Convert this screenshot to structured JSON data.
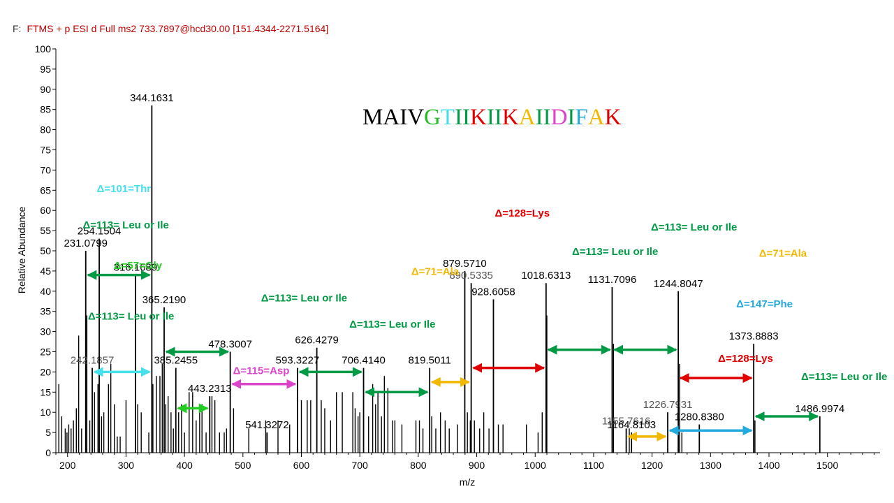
{
  "header": {
    "prefix": "F:",
    "scan_filter": "FTMS + p ESI d Full ms2 733.7897@hcd30.00 [151.4344-2271.5164]"
  },
  "sequence": [
    {
      "ch": "M",
      "color": "#000000"
    },
    {
      "ch": "A",
      "color": "#000000"
    },
    {
      "ch": "I",
      "color": "#000000"
    },
    {
      "ch": "V",
      "color": "#000000"
    },
    {
      "ch": "G",
      "color": "#22bb22"
    },
    {
      "ch": "T",
      "color": "#44e0ee"
    },
    {
      "ch": "I",
      "color": "#009a44"
    },
    {
      "ch": "I",
      "color": "#009a44"
    },
    {
      "ch": "K",
      "color": "#e00000"
    },
    {
      "ch": "I",
      "color": "#009a44"
    },
    {
      "ch": "I",
      "color": "#009a44"
    },
    {
      "ch": "K",
      "color": "#e00000"
    },
    {
      "ch": "A",
      "color": "#f2b800"
    },
    {
      "ch": "I",
      "color": "#009a44"
    },
    {
      "ch": "I",
      "color": "#009a44"
    },
    {
      "ch": "D",
      "color": "#dd44cc"
    },
    {
      "ch": "I",
      "color": "#009a44"
    },
    {
      "ch": "F",
      "color": "#22a9dd"
    },
    {
      "ch": "A",
      "color": "#f2b800"
    },
    {
      "ch": "K",
      "color": "#e00000"
    }
  ],
  "chart_data": {
    "type": "bar",
    "xlabel": "m/z",
    "ylabel": "Relative Abundance",
    "xlim": [
      180,
      1590
    ],
    "ylim": [
      0,
      100
    ],
    "x_ticks": [
      200,
      300,
      400,
      500,
      600,
      700,
      800,
      900,
      1000,
      1100,
      1200,
      1300,
      1400,
      1500
    ],
    "y_ticks": [
      0,
      5,
      10,
      15,
      20,
      25,
      30,
      35,
      40,
      45,
      50,
      55,
      60,
      65,
      70,
      75,
      80,
      85,
      90,
      95,
      100
    ],
    "colors": {
      "axis": "#000000",
      "peak": "#000000",
      "peak_label": "#000000",
      "minor_label": "#555555",
      "header": "#c00000"
    },
    "labeled_peaks": [
      {
        "mz": 231.0799,
        "intensity": 50,
        "label": "231.0799"
      },
      {
        "mz": 242.1857,
        "intensity": 21,
        "label": "242.1857",
        "minor": true
      },
      {
        "mz": 254.1504,
        "intensity": 53,
        "label": "254.1504"
      },
      {
        "mz": 316.1689,
        "intensity": 44,
        "label": "316.1689"
      },
      {
        "mz": 344.1631,
        "intensity": 86,
        "label": "344.1631"
      },
      {
        "mz": 365.219,
        "intensity": 36,
        "label": "365.2190"
      },
      {
        "mz": 385.2455,
        "intensity": 21,
        "label": "385.2455"
      },
      {
        "mz": 443.2313,
        "intensity": 14,
        "label": "443.2313"
      },
      {
        "mz": 478.3007,
        "intensity": 25,
        "label": "478.3007"
      },
      {
        "mz": 541.3272,
        "intensity": 5,
        "label": "541.3272"
      },
      {
        "mz": 593.3227,
        "intensity": 21,
        "label": "593.3227"
      },
      {
        "mz": 626.4279,
        "intensity": 26,
        "label": "626.4279"
      },
      {
        "mz": 706.414,
        "intensity": 21,
        "label": "706.4140"
      },
      {
        "mz": 819.5011,
        "intensity": 21,
        "label": "819.5011"
      },
      {
        "mz": 879.571,
        "intensity": 45,
        "label": "879.5710"
      },
      {
        "mz": 890.5335,
        "intensity": 42,
        "label": "890.5335",
        "minor": true
      },
      {
        "mz": 928.6058,
        "intensity": 38,
        "label": "928.6058"
      },
      {
        "mz": 1018.6313,
        "intensity": 42,
        "label": "1018.6313"
      },
      {
        "mz": 1131.7096,
        "intensity": 41,
        "label": "1131.7096"
      },
      {
        "mz": 1155.7616,
        "intensity": 6,
        "label": "1155.7616",
        "minor": true
      },
      {
        "mz": 1164.8103,
        "intensity": 5,
        "label": "1164.8103"
      },
      {
        "mz": 1226.7931,
        "intensity": 10,
        "label": "1226.7931",
        "minor": true
      },
      {
        "mz": 1244.8047,
        "intensity": 40,
        "label": "1244.8047"
      },
      {
        "mz": 1280.838,
        "intensity": 7,
        "label": "1280.8380"
      },
      {
        "mz": 1373.8883,
        "intensity": 27,
        "label": "1373.8883"
      },
      {
        "mz": 1486.9974,
        "intensity": 9,
        "label": "1486.9974"
      }
    ],
    "minor_peaks": [
      [
        185,
        17
      ],
      [
        190,
        9
      ],
      [
        196,
        6
      ],
      [
        199,
        5
      ],
      [
        202,
        7
      ],
      [
        206,
        6
      ],
      [
        210,
        8
      ],
      [
        215,
        11
      ],
      [
        219,
        29
      ],
      [
        224,
        6
      ],
      [
        233,
        34
      ],
      [
        238,
        8
      ],
      [
        246,
        15
      ],
      [
        252,
        17
      ],
      [
        258,
        9
      ],
      [
        262,
        10
      ],
      [
        270,
        17
      ],
      [
        274,
        22
      ],
      [
        280,
        12
      ],
      [
        285,
        4
      ],
      [
        290,
        4
      ],
      [
        300,
        13
      ],
      [
        320,
        12
      ],
      [
        326,
        10
      ],
      [
        339,
        5
      ],
      [
        346,
        17
      ],
      [
        352,
        19
      ],
      [
        358,
        19
      ],
      [
        362,
        22
      ],
      [
        368,
        12
      ],
      [
        372,
        14
      ],
      [
        377,
        10
      ],
      [
        381,
        6
      ],
      [
        390,
        10
      ],
      [
        395,
        12
      ],
      [
        400,
        5
      ],
      [
        408,
        15
      ],
      [
        414,
        15
      ],
      [
        420,
        8
      ],
      [
        426,
        10
      ],
      [
        430,
        12
      ],
      [
        437,
        5
      ],
      [
        447,
        14
      ],
      [
        452,
        13
      ],
      [
        460,
        5
      ],
      [
        468,
        5
      ],
      [
        472,
        6
      ],
      [
        484,
        11
      ],
      [
        510,
        6
      ],
      [
        539,
        8
      ],
      [
        560,
        8
      ],
      [
        580,
        7
      ],
      [
        600,
        13
      ],
      [
        610,
        13
      ],
      [
        616,
        13
      ],
      [
        634,
        13
      ],
      [
        640,
        11
      ],
      [
        650,
        8
      ],
      [
        660,
        15
      ],
      [
        670,
        15
      ],
      [
        688,
        15
      ],
      [
        692,
        11
      ],
      [
        697,
        9
      ],
      [
        700,
        10
      ],
      [
        715,
        9
      ],
      [
        722,
        17
      ],
      [
        727,
        12
      ],
      [
        731,
        15
      ],
      [
        737,
        9
      ],
      [
        742,
        19
      ],
      [
        748,
        16
      ],
      [
        756,
        8
      ],
      [
        760,
        8
      ],
      [
        772,
        7
      ],
      [
        796,
        8
      ],
      [
        802,
        8
      ],
      [
        808,
        6
      ],
      [
        823,
        9
      ],
      [
        830,
        6
      ],
      [
        838,
        10
      ],
      [
        846,
        8
      ],
      [
        853,
        6
      ],
      [
        867,
        7
      ],
      [
        884,
        10
      ],
      [
        889,
        8
      ],
      [
        896,
        8
      ],
      [
        905,
        6
      ],
      [
        912,
        10
      ],
      [
        921,
        6
      ],
      [
        937,
        7
      ],
      [
        945,
        7
      ],
      [
        985,
        7
      ],
      [
        1005,
        5
      ],
      [
        1012,
        10
      ],
      [
        1020,
        34
      ],
      [
        1134,
        27
      ],
      [
        1161,
        6
      ],
      [
        1247,
        22
      ],
      [
        1251,
        5
      ],
      [
        1376,
        8
      ]
    ],
    "arrows": [
      {
        "from": 231.0799,
        "to": 344.1631,
        "y": 44,
        "color": "#009a44"
      },
      {
        "from": 242.1857,
        "to": 344.1631,
        "y": 20,
        "color": "#44e0ee"
      },
      {
        "from": 365.219,
        "to": 478.3007,
        "y": 25,
        "color": "#009a44"
      },
      {
        "from": 385.2455,
        "to": 443.2313,
        "y": 11,
        "color": "#22cc22"
      },
      {
        "from": 478.3007,
        "to": 593.3227,
        "y": 17,
        "color": "#dd44cc"
      },
      {
        "from": 593.3227,
        "to": 706.414,
        "y": 20,
        "color": "#009a44"
      },
      {
        "from": 706.414,
        "to": 819.5011,
        "y": 15,
        "color": "#009a44"
      },
      {
        "from": 819.5011,
        "to": 890.5335,
        "y": 17.5,
        "color": "#f2b800"
      },
      {
        "from": 890.5335,
        "to": 1018.6313,
        "y": 21,
        "color": "#e00000"
      },
      {
        "from": 1018.6313,
        "to": 1131.7096,
        "y": 25.5,
        "color": "#009a44"
      },
      {
        "from": 1131.7096,
        "to": 1244.8047,
        "y": 25.5,
        "color": "#009a44"
      },
      {
        "from": 1155.7616,
        "to": 1226.7931,
        "y": 4,
        "color": "#f2b800"
      },
      {
        "from": 1226.7931,
        "to": 1373.8883,
        "y": 5.5,
        "color": "#22a9dd"
      },
      {
        "from": 1244.8047,
        "to": 1373.8883,
        "y": 18.5,
        "color": "#e00000"
      },
      {
        "from": 1373.8883,
        "to": 1486.9974,
        "y": 9,
        "color": "#009a44"
      }
    ],
    "annotations": [
      {
        "text": "Δ=101=Thr",
        "mz": 250,
        "y": 64.5,
        "color": "#44e0ee"
      },
      {
        "text": "Δ=113= Leu or Ile",
        "mz": 226,
        "y": 55.5,
        "color": "#009a44"
      },
      {
        "text": "Δ=57=Gly",
        "mz": 279,
        "y": 45.5,
        "color": "#22cc22"
      },
      {
        "text": "Δ=113= Leu or Ile",
        "mz": 235,
        "y": 33,
        "color": "#009a44"
      },
      {
        "text": "Δ=115=Asp",
        "mz": 483,
        "y": 19.5,
        "color": "#dd44cc"
      },
      {
        "text": "Δ=113= Leu or Ile",
        "mz": 531,
        "y": 37.5,
        "color": "#009a44"
      },
      {
        "text": "Δ=113= Leu or Ile",
        "mz": 682,
        "y": 31,
        "color": "#009a44"
      },
      {
        "text": "Δ=71=Ala",
        "mz": 788,
        "y": 44,
        "color": "#f2b800"
      },
      {
        "text": "Δ=128=Lys",
        "mz": 931,
        "y": 58.5,
        "color": "#e00000"
      },
      {
        "text": "Δ=113= Leu or Ile",
        "mz": 1063,
        "y": 49,
        "color": "#009a44"
      },
      {
        "text": "Δ=113= Leu or Ile",
        "mz": 1198,
        "y": 55,
        "color": "#009a44"
      },
      {
        "text": "Δ=71=Ala",
        "mz": 1383,
        "y": 48.5,
        "color": "#f2b800"
      },
      {
        "text": "Δ=147=Phe",
        "mz": 1344,
        "y": 36,
        "color": "#22a9dd"
      },
      {
        "text": "Δ=128=Lys",
        "mz": 1313,
        "y": 22.5,
        "color": "#e00000"
      },
      {
        "text": "Δ=113= Leu or Ile",
        "mz": 1455,
        "y": 18,
        "color": "#009a44"
      }
    ]
  }
}
